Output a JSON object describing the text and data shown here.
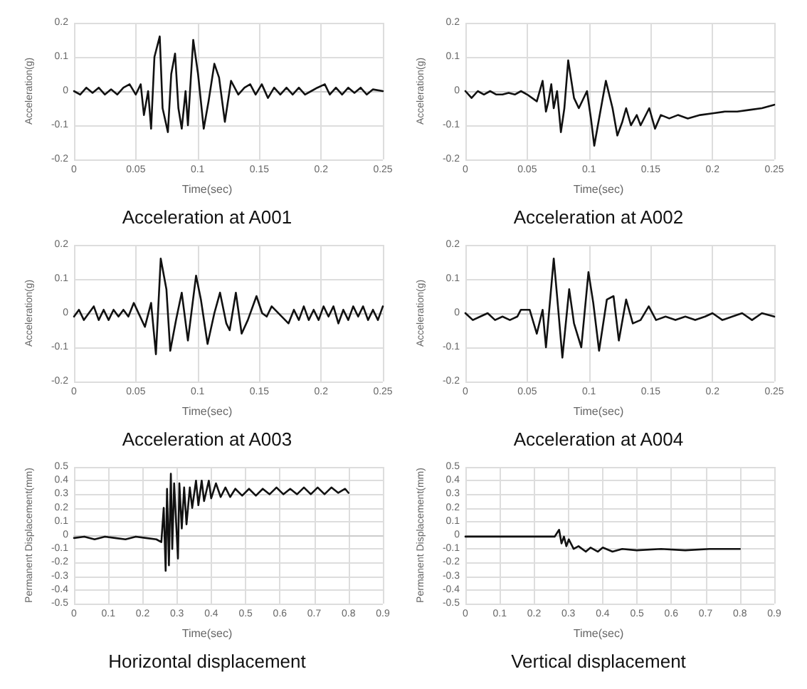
{
  "chart_data": [
    {
      "type": "line",
      "title": "Acceleration at A001",
      "xlabel": "Time(sec)",
      "ylabel": "Acceleration(g)",
      "color": "#111111",
      "marker": "none",
      "line_style": "solid",
      "grid": true,
      "xlim": [
        0,
        0.25
      ],
      "xticks": [
        0,
        0.05,
        0.1,
        0.15,
        0.2,
        0.25
      ],
      "ylim": [
        -0.2,
        0.2
      ],
      "yticks": [
        -0.2,
        -0.1,
        0,
        0.1,
        0.2
      ],
      "x": [
        0,
        0.005,
        0.01,
        0.015,
        0.02,
        0.025,
        0.03,
        0.035,
        0.04,
        0.045,
        0.05,
        0.054,
        0.0566,
        0.06,
        0.0624,
        0.0651,
        0.0694,
        0.0717,
        0.076,
        0.0787,
        0.0818,
        0.0845,
        0.0872,
        0.0903,
        0.0922,
        0.0965,
        0.1004,
        0.105,
        0.1089,
        0.1136,
        0.1174,
        0.1221,
        0.1271,
        0.133,
        0.138,
        0.1426,
        0.147,
        0.152,
        0.157,
        0.162,
        0.167,
        0.172,
        0.177,
        0.182,
        0.187,
        0.192,
        0.197,
        0.203,
        0.207,
        0.212,
        0.217,
        0.222,
        0.227,
        0.232,
        0.237,
        0.242,
        0.25
      ],
      "values": [
        0,
        -0.01,
        0.01,
        -0.005,
        0.01,
        -0.01,
        0.005,
        -0.01,
        0.01,
        0.02,
        -0.01,
        0.02,
        -0.07,
        0,
        -0.11,
        0.1,
        0.16,
        -0.05,
        -0.12,
        0.05,
        0.11,
        -0.05,
        -0.11,
        0,
        -0.1,
        0.15,
        0.05,
        -0.11,
        -0.03,
        0.08,
        0.04,
        -0.09,
        0.03,
        -0.01,
        0.01,
        0.02,
        -0.01,
        0.02,
        -0.02,
        0.01,
        -0.01,
        0.01,
        -0.01,
        0.01,
        -0.01,
        0,
        0.01,
        0.02,
        -0.01,
        0.01,
        -0.01,
        0.01,
        -0.005,
        0.01,
        -0.01,
        0.005,
        0
      ]
    },
    {
      "type": "line",
      "title": "Acceleration at A002",
      "xlabel": "Time(sec)",
      "ylabel": "Acceleration(g)",
      "color": "#111111",
      "marker": "none",
      "line_style": "solid",
      "grid": true,
      "xlim": [
        0,
        0.25
      ],
      "xticks": [
        0,
        0.05,
        0.1,
        0.15,
        0.2,
        0.25
      ],
      "ylim": [
        -0.2,
        0.2
      ],
      "yticks": [
        -0.2,
        -0.1,
        0,
        0.1,
        0.2
      ],
      "x": [
        0,
        0.005,
        0.01,
        0.015,
        0.02,
        0.025,
        0.03,
        0.035,
        0.04,
        0.045,
        0.05,
        0.0578,
        0.0625,
        0.0652,
        0.0672,
        0.0695,
        0.0715,
        0.0742,
        0.0773,
        0.0801,
        0.0832,
        0.0879,
        0.0918,
        0.0984,
        0.1016,
        0.1043,
        0.1082,
        0.1137,
        0.1191,
        0.123,
        0.127,
        0.1301,
        0.134,
        0.1387,
        0.1418,
        0.1488,
        0.1535,
        0.1582,
        0.165,
        0.172,
        0.18,
        0.19,
        0.2,
        0.21,
        0.22,
        0.23,
        0.24,
        0.25
      ],
      "values": [
        0,
        -0.02,
        0,
        -0.01,
        0,
        -0.01,
        -0.01,
        -0.005,
        -0.01,
        0,
        -0.01,
        -0.03,
        0.03,
        -0.06,
        -0.03,
        0.02,
        -0.05,
        0,
        -0.12,
        -0.05,
        0.09,
        -0.02,
        -0.05,
        0,
        -0.08,
        -0.16,
        -0.08,
        0.03,
        -0.05,
        -0.13,
        -0.09,
        -0.05,
        -0.1,
        -0.07,
        -0.1,
        -0.05,
        -0.11,
        -0.07,
        -0.08,
        -0.07,
        -0.08,
        -0.07,
        -0.065,
        -0.06,
        -0.06,
        -0.055,
        -0.05,
        -0.04
      ]
    },
    {
      "type": "line",
      "title": "Acceleration at A003",
      "xlabel": "Time(sec)",
      "ylabel": "Acceleration(g)",
      "color": "#111111",
      "marker": "none",
      "line_style": "solid",
      "grid": true,
      "xlim": [
        0,
        0.25
      ],
      "xticks": [
        0,
        0.05,
        0.1,
        0.15,
        0.2,
        0.25
      ],
      "ylim": [
        -0.2,
        0.2
      ],
      "yticks": [
        -0.2,
        -0.1,
        0,
        0.1,
        0.2
      ],
      "x": [
        0,
        0.004,
        0.008,
        0.012,
        0.016,
        0.02,
        0.024,
        0.028,
        0.032,
        0.036,
        0.04,
        0.044,
        0.0484,
        0.0574,
        0.0624,
        0.0663,
        0.0702,
        0.0748,
        0.0779,
        0.0826,
        0.0872,
        0.0922,
        0.0988,
        0.1027,
        0.1081,
        0.1136,
        0.1182,
        0.1233,
        0.126,
        0.131,
        0.1357,
        0.1407,
        0.1477,
        0.1523,
        0.156,
        0.16,
        0.1736,
        0.178,
        0.182,
        0.186,
        0.19,
        0.194,
        0.198,
        0.202,
        0.206,
        0.21,
        0.214,
        0.218,
        0.222,
        0.226,
        0.23,
        0.234,
        0.238,
        0.242,
        0.246,
        0.25
      ],
      "values": [
        -0.01,
        0.01,
        -0.02,
        0,
        0.02,
        -0.02,
        0.01,
        -0.02,
        0.01,
        -0.01,
        0.01,
        -0.01,
        0.03,
        -0.04,
        0.03,
        -0.12,
        0.16,
        0.07,
        -0.11,
        -0.02,
        0.06,
        -0.08,
        0.11,
        0.04,
        -0.09,
        0,
        0.06,
        -0.03,
        -0.05,
        0.06,
        -0.06,
        -0.02,
        0.05,
        0,
        -0.01,
        0.02,
        -0.03,
        0.01,
        -0.02,
        0.02,
        -0.02,
        0.01,
        -0.02,
        0.02,
        -0.01,
        0.02,
        -0.03,
        0.01,
        -0.02,
        0.02,
        -0.01,
        0.02,
        -0.02,
        0.01,
        -0.02,
        0.02
      ]
    },
    {
      "type": "line",
      "title": "Acceleration at A004",
      "xlabel": "Time(sec)",
      "ylabel": "Acceleration(g)",
      "color": "#111111",
      "marker": "none",
      "line_style": "solid",
      "grid": true,
      "xlim": [
        0,
        0.25
      ],
      "xticks": [
        0,
        0.05,
        0.1,
        0.15,
        0.2,
        0.25
      ],
      "ylim": [
        -0.2,
        0.2
      ],
      "yticks": [
        -0.2,
        -0.1,
        0,
        0.1,
        0.2
      ],
      "x": [
        0,
        0.006,
        0.012,
        0.018,
        0.024,
        0.03,
        0.036,
        0.042,
        0.0449,
        0.052,
        0.0578,
        0.0625,
        0.0652,
        0.0715,
        0.0742,
        0.0785,
        0.084,
        0.0879,
        0.0938,
        0.0996,
        0.1035,
        0.1082,
        0.1145,
        0.1199,
        0.1242,
        0.1301,
        0.1355,
        0.1418,
        0.1484,
        0.1543,
        0.162,
        0.17,
        0.178,
        0.186,
        0.194,
        0.2,
        0.208,
        0.216,
        0.224,
        0.232,
        0.24,
        0.25
      ],
      "values": [
        0,
        -0.02,
        -0.01,
        0,
        -0.02,
        -0.01,
        -0.02,
        -0.01,
        0.01,
        0.01,
        -0.06,
        0.01,
        -0.1,
        0.16,
        0.05,
        -0.13,
        0.07,
        -0.03,
        -0.1,
        0.12,
        0.03,
        -0.11,
        0.04,
        0.05,
        -0.08,
        0.04,
        -0.03,
        -0.02,
        0.02,
        -0.02,
        -0.01,
        -0.02,
        -0.01,
        -0.02,
        -0.01,
        0,
        -0.02,
        -0.01,
        0,
        -0.02,
        0,
        -0.01
      ]
    },
    {
      "type": "line",
      "title": "Horizontal displacement",
      "xlabel": "Time(sec)",
      "ylabel": "Permanent Displacement(mm)",
      "color": "#111111",
      "marker": "none",
      "line_style": "solid",
      "grid": true,
      "xlim": [
        0,
        0.9
      ],
      "xticks": [
        0,
        0.1,
        0.2,
        0.3,
        0.4,
        0.5,
        0.6,
        0.7,
        0.8,
        0.9
      ],
      "ylim": [
        -0.5,
        0.5
      ],
      "yticks": [
        -0.5,
        -0.4,
        -0.3,
        -0.2,
        -0.1,
        0,
        0.1,
        0.2,
        0.3,
        0.4,
        0.5
      ],
      "x": [
        0,
        0.03,
        0.06,
        0.09,
        0.12,
        0.15,
        0.18,
        0.21,
        0.24,
        0.2545,
        0.2614,
        0.267,
        0.2711,
        0.2766,
        0.2822,
        0.2863,
        0.2918,
        0.2974,
        0.3029,
        0.307,
        0.314,
        0.3209,
        0.3278,
        0.3375,
        0.3444,
        0.3555,
        0.3624,
        0.3721,
        0.379,
        0.3928,
        0.3997,
        0.4136,
        0.4274,
        0.4412,
        0.455,
        0.47,
        0.49,
        0.51,
        0.53,
        0.55,
        0.57,
        0.59,
        0.61,
        0.63,
        0.65,
        0.67,
        0.69,
        0.71,
        0.73,
        0.75,
        0.77,
        0.79,
        0.8
      ],
      "values": [
        -0.02,
        -0.01,
        -0.03,
        -0.01,
        -0.02,
        -0.03,
        -0.01,
        -0.02,
        -0.03,
        -0.05,
        0.2,
        -0.26,
        0.34,
        -0.22,
        0.45,
        -0.1,
        0.38,
        0.1,
        -0.17,
        0.38,
        0.05,
        0.35,
        0.08,
        0.35,
        0.2,
        0.4,
        0.22,
        0.4,
        0.25,
        0.4,
        0.27,
        0.38,
        0.28,
        0.35,
        0.28,
        0.34,
        0.29,
        0.34,
        0.29,
        0.34,
        0.3,
        0.35,
        0.3,
        0.34,
        0.3,
        0.35,
        0.3,
        0.35,
        0.3,
        0.35,
        0.31,
        0.34,
        0.31
      ]
    },
    {
      "type": "line",
      "title": "Vertical displacement",
      "xlabel": "Time(sec)",
      "ylabel": "Permanent Displacement(mm)",
      "color": "#111111",
      "marker": "none",
      "line_style": "solid",
      "grid": true,
      "xlim": [
        0,
        0.9
      ],
      "xticks": [
        0,
        0.1,
        0.2,
        0.3,
        0.4,
        0.5,
        0.6,
        0.7,
        0.8,
        0.9
      ],
      "ylim": [
        -0.5,
        0.5
      ],
      "yticks": [
        -0.5,
        -0.4,
        -0.3,
        -0.2,
        -0.1,
        0,
        0.1,
        0.2,
        0.3,
        0.4,
        0.5
      ],
      "x": [
        0,
        0.05,
        0.1,
        0.15,
        0.2,
        0.26,
        0.273,
        0.28,
        0.2871,
        0.2942,
        0.3013,
        0.3154,
        0.3296,
        0.3508,
        0.3649,
        0.3861,
        0.4003,
        0.4286,
        0.4569,
        0.4993,
        0.57,
        0.6407,
        0.7115,
        0.8
      ],
      "values": [
        -0.01,
        -0.01,
        -0.01,
        -0.01,
        -0.01,
        -0.01,
        0.04,
        -0.06,
        -0.01,
        -0.08,
        -0.03,
        -0.1,
        -0.08,
        -0.12,
        -0.09,
        -0.12,
        -0.09,
        -0.12,
        -0.1,
        -0.11,
        -0.1,
        -0.11,
        -0.1,
        -0.1
      ]
    }
  ]
}
